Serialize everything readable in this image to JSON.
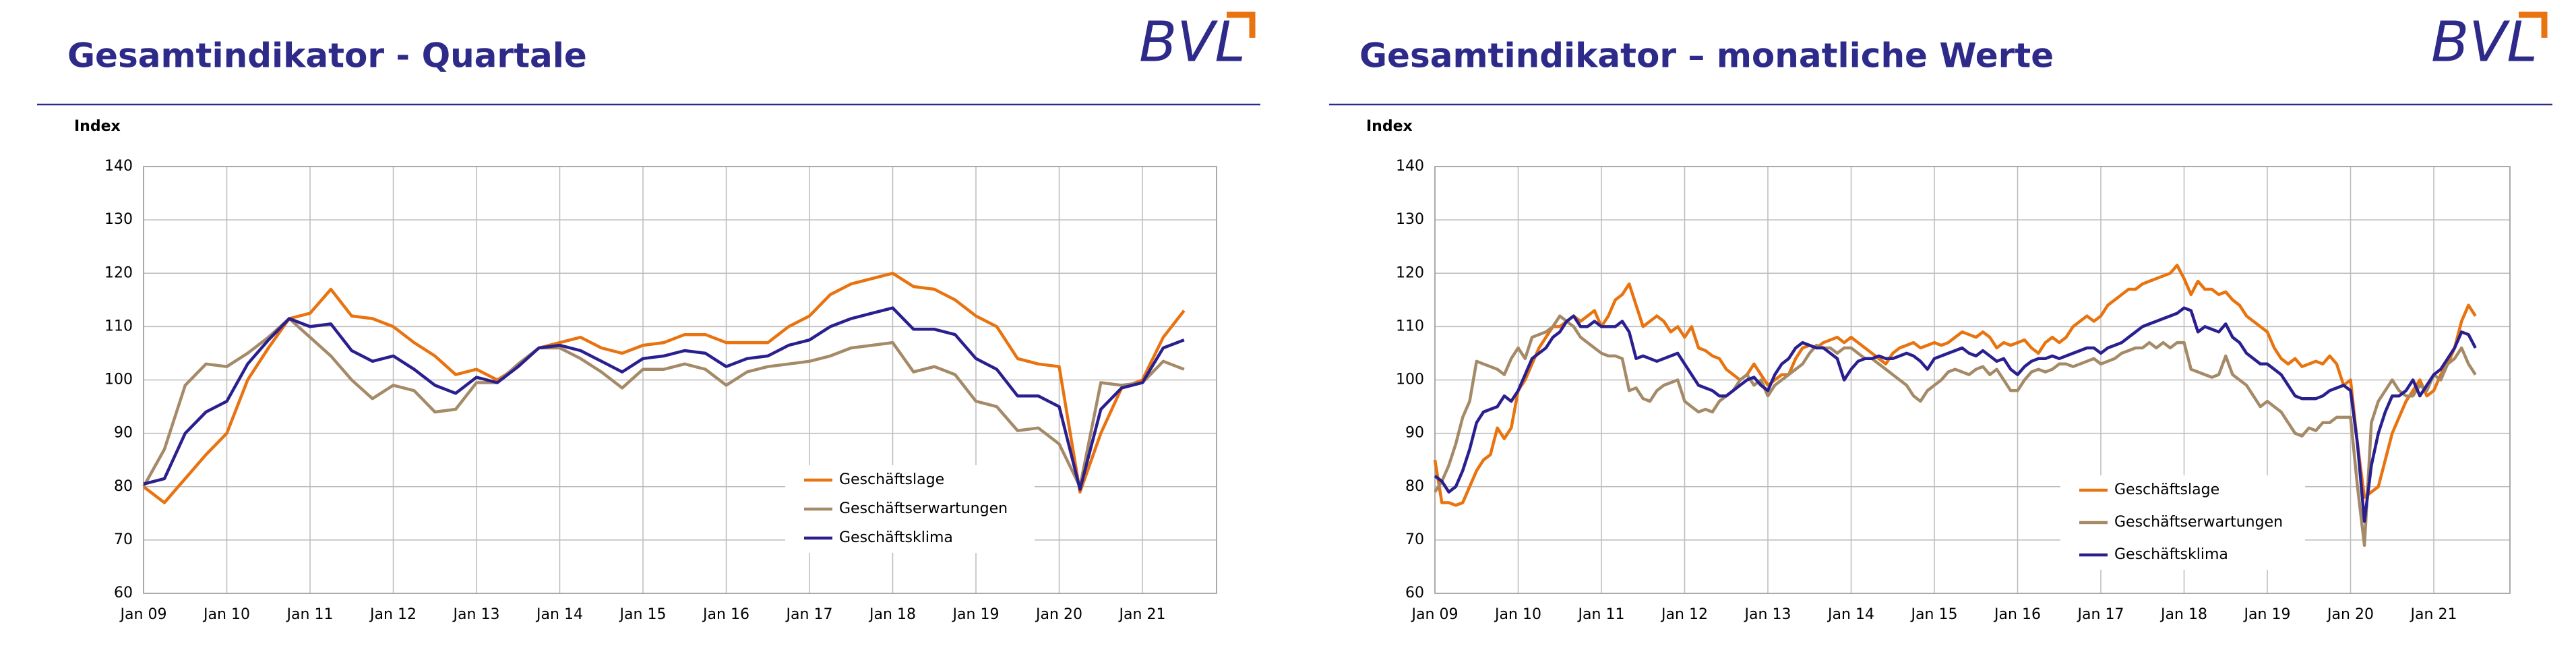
{
  "chart_data": [
    {
      "type": "line",
      "title": "Gesamtindikator - Quartale",
      "logo": "BVL",
      "y_label": "Index",
      "categories": [
        "Jan 09",
        null,
        null,
        null,
        "Jan 10",
        null,
        null,
        null,
        "Jan 11",
        null,
        null,
        null,
        "Jan 12",
        null,
        null,
        null,
        "Jan 13",
        null,
        null,
        null,
        "Jan 14",
        null,
        null,
        null,
        "Jan 15",
        null,
        null,
        null,
        "Jan 16",
        null,
        null,
        null,
        "Jan 17",
        null,
        null,
        null,
        "Jan 18",
        null,
        null,
        null,
        "Jan 19",
        null,
        null,
        null,
        "Jan 20",
        null,
        null,
        null,
        "Jan 21",
        null,
        null
      ],
      "ylim": [
        60,
        140
      ],
      "yticks": [
        60,
        70,
        80,
        90,
        100,
        110,
        120,
        130,
        140
      ],
      "grid": true,
      "series": [
        {
          "name": "Geschäftslage",
          "color": "#e8730f",
          "values": [
            80,
            77,
            81.5,
            86,
            90,
            100,
            106,
            111.5,
            112.5,
            117,
            112,
            111.5,
            110,
            107,
            104.5,
            101,
            102,
            100,
            102.5,
            106,
            107,
            108,
            106,
            105,
            106.5,
            107,
            108.5,
            108.5,
            107,
            107,
            107,
            110,
            112,
            116,
            118,
            119,
            120,
            117.5,
            117,
            115,
            112,
            110,
            104,
            103,
            102.5,
            79,
            90,
            98.5,
            100,
            108,
            113
          ]
        },
        {
          "name": "Geschäftserwartungen",
          "color": "#a58a68",
          "values": [
            80,
            87,
            99,
            103,
            102.5,
            105,
            108,
            111.5,
            108,
            104.5,
            100,
            96.5,
            99,
            98,
            94,
            94.5,
            99.5,
            99.5,
            103,
            106,
            106,
            104,
            101.5,
            98.5,
            102,
            102,
            103,
            102,
            99,
            101.5,
            102.5,
            103,
            103.5,
            104.5,
            106,
            106.5,
            107,
            101.5,
            102.5,
            101,
            96,
            95,
            90.5,
            91,
            88,
            80,
            99.5,
            99,
            99.5,
            103.5,
            102
          ]
        },
        {
          "name": "Geschäftsklima",
          "color": "#2a1f8f",
          "values": [
            80.5,
            81.5,
            90,
            94,
            96,
            103,
            107.5,
            111.5,
            110,
            110.5,
            105.5,
            103.5,
            104.5,
            102,
            99,
            97.5,
            100.5,
            99.5,
            102.5,
            106,
            106.5,
            105.5,
            103.5,
            101.5,
            104,
            104.5,
            105.5,
            105,
            102.5,
            104,
            104.5,
            106.5,
            107.5,
            110,
            111.5,
            112.5,
            113.5,
            109.5,
            109.5,
            108.5,
            104,
            102,
            97,
            97,
            95,
            79.5,
            94.5,
            98.5,
            99.5,
            106,
            107.5
          ]
        }
      ]
    },
    {
      "type": "line",
      "title": "Gesamtindikator – monatliche Werte",
      "logo": "BVL",
      "y_label": "Index",
      "categories": [
        "Jan 09",
        null,
        null,
        null,
        null,
        null,
        null,
        null,
        null,
        null,
        null,
        null,
        "Jan 10",
        null,
        null,
        null,
        null,
        null,
        null,
        null,
        null,
        null,
        null,
        null,
        "Jan 11",
        null,
        null,
        null,
        null,
        null,
        null,
        null,
        null,
        null,
        null,
        null,
        "Jan 12",
        null,
        null,
        null,
        null,
        null,
        null,
        null,
        null,
        null,
        null,
        null,
        "Jan 13",
        null,
        null,
        null,
        null,
        null,
        null,
        null,
        null,
        null,
        null,
        null,
        "Jan 14",
        null,
        null,
        null,
        null,
        null,
        null,
        null,
        null,
        null,
        null,
        null,
        "Jan 15",
        null,
        null,
        null,
        null,
        null,
        null,
        null,
        null,
        null,
        null,
        null,
        "Jan 16",
        null,
        null,
        null,
        null,
        null,
        null,
        null,
        null,
        null,
        null,
        null,
        "Jan 17",
        null,
        null,
        null,
        null,
        null,
        null,
        null,
        null,
        null,
        null,
        null,
        "Jan 18",
        null,
        null,
        null,
        null,
        null,
        null,
        null,
        null,
        null,
        null,
        null,
        "Jan 19",
        null,
        null,
        null,
        null,
        null,
        null,
        null,
        null,
        null,
        null,
        null,
        "Jan 20",
        null,
        null,
        null,
        null,
        null,
        null,
        null,
        null,
        null,
        null,
        null,
        "Jan 21",
        null,
        null,
        null,
        null,
        null,
        null
      ],
      "ylim": [
        60,
        140
      ],
      "yticks": [
        60,
        70,
        80,
        90,
        100,
        110,
        120,
        130,
        140
      ],
      "grid": true,
      "series": [
        {
          "name": "Geschäftslage",
          "color": "#e8730f",
          "values": [
            85,
            77,
            77,
            76.5,
            77,
            80,
            83,
            85,
            86,
            91,
            89,
            91,
            98,
            100,
            103,
            106,
            108,
            110,
            110,
            111,
            112,
            111,
            112,
            113,
            110,
            112,
            115,
            116,
            118,
            114,
            110,
            111,
            112,
            111,
            109,
            110,
            108,
            110,
            106,
            105.5,
            104.5,
            104,
            102,
            101,
            100,
            101,
            103,
            101,
            99,
            100,
            101,
            101,
            104,
            106,
            106.5,
            106,
            107,
            107.5,
            108,
            107,
            108,
            107,
            106,
            105,
            104,
            103,
            105,
            106,
            106.5,
            107,
            106,
            106.5,
            107,
            106.5,
            107,
            108,
            109,
            108.5,
            108,
            109,
            108,
            106,
            107,
            106.5,
            107,
            107.5,
            106,
            105,
            107,
            108,
            107,
            108,
            110,
            111,
            112,
            111,
            112,
            114,
            115,
            116,
            117,
            117,
            118,
            118.5,
            119,
            119.5,
            120,
            121.5,
            119,
            116,
            118.5,
            117,
            117,
            116,
            116.5,
            115,
            114,
            112,
            111,
            110,
            109,
            106,
            104,
            103,
            104,
            102.5,
            103,
            103.5,
            103,
            104.5,
            103,
            99,
            100,
            88,
            78,
            79,
            80,
            85,
            90,
            93,
            96,
            98,
            100,
            97,
            98,
            101,
            103,
            106,
            111,
            114,
            112
          ]
        },
        {
          "name": "Geschäftserwartungen",
          "color": "#a58a68",
          "values": [
            79,
            81,
            84,
            88,
            93,
            96,
            103.5,
            103,
            102.5,
            102,
            101,
            104,
            106,
            104,
            108,
            108.5,
            109,
            110,
            112,
            111,
            110,
            108,
            107,
            106,
            105,
            104.5,
            104.5,
            104,
            98,
            98.5,
            96.5,
            96,
            98,
            99,
            99.5,
            100,
            96,
            95,
            94,
            94.5,
            94,
            96,
            97,
            98,
            100,
            101,
            99,
            100,
            97,
            99,
            100,
            101,
            102,
            103,
            105,
            106.5,
            106,
            106,
            105,
            106,
            106,
            105,
            104,
            104,
            103,
            102,
            101,
            100,
            99,
            97,
            96,
            98,
            99,
            100,
            101.5,
            102,
            101.5,
            101,
            102,
            102.5,
            101,
            102,
            100,
            98,
            98,
            100,
            101.5,
            102,
            101.5,
            102,
            103,
            103,
            102.5,
            103,
            103.5,
            104,
            103,
            103.5,
            104,
            105,
            105.5,
            106,
            106,
            107,
            106,
            107,
            106,
            107,
            107,
            102,
            101.5,
            101,
            100.5,
            101,
            104.5,
            101,
            100,
            99,
            97,
            95,
            96,
            95,
            94,
            92,
            90,
            89.5,
            91,
            90.5,
            92,
            92,
            93,
            93,
            93,
            80,
            69,
            92,
            96,
            98,
            100,
            98,
            97,
            97,
            99,
            98,
            101,
            100,
            103,
            104,
            106,
            103,
            101
          ]
        },
        {
          "name": "Geschäftsklima",
          "color": "#2a1f8f",
          "values": [
            82,
            81,
            79,
            80,
            83,
            87,
            92,
            94,
            94.5,
            95,
            97,
            96,
            98,
            101,
            104,
            105,
            106,
            108,
            109,
            111,
            112,
            110,
            110,
            111,
            110,
            110,
            110,
            111,
            109,
            104,
            104.5,
            104,
            103.5,
            104,
            104.5,
            105,
            103,
            101,
            99,
            98.5,
            98,
            97,
            97,
            98,
            99,
            100,
            100.5,
            99,
            98,
            101,
            103,
            104,
            106,
            107,
            106.5,
            106,
            106,
            105,
            104,
            100,
            102,
            103.5,
            104,
            104,
            104.5,
            104,
            104,
            104.5,
            105,
            104.5,
            103.5,
            102,
            104,
            104.5,
            105,
            105.5,
            106,
            105,
            104.5,
            105.5,
            104.5,
            103.5,
            104,
            102,
            101,
            102.5,
            103.5,
            104,
            104,
            104.5,
            104,
            104.5,
            105,
            105.5,
            106,
            106,
            105,
            106,
            106.5,
            107,
            108,
            109,
            110,
            110.5,
            111,
            111.5,
            112,
            112.5,
            113.5,
            113,
            109,
            110,
            109.5,
            109,
            110.5,
            108,
            107,
            105,
            104,
            103,
            103,
            102,
            101,
            99,
            97,
            96.5,
            96.5,
            96.5,
            97,
            98,
            98.5,
            99,
            98,
            88,
            73.5,
            84,
            90,
            94,
            97,
            97,
            98,
            100,
            97,
            99,
            101,
            102,
            104,
            106,
            109,
            108.5,
            106
          ]
        }
      ]
    }
  ]
}
